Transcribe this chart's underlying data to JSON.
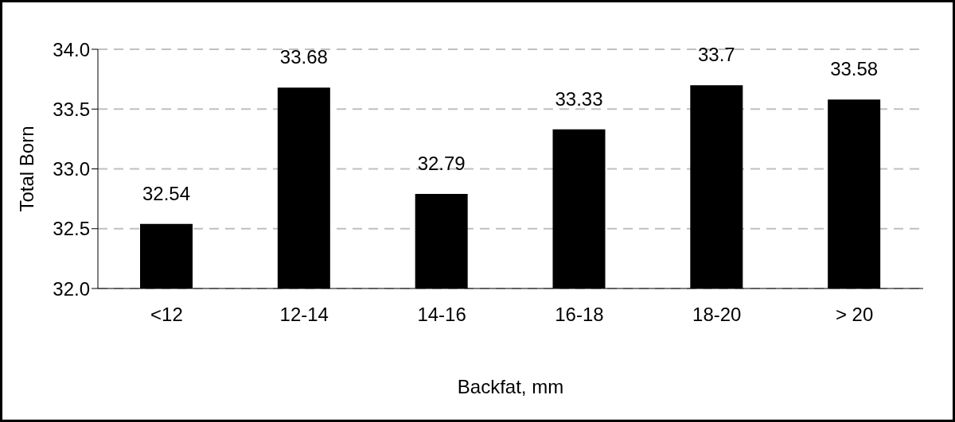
{
  "chart_data": {
    "type": "bar",
    "xlabel": "Backfat, mm",
    "ylabel": "Total Born",
    "categories": [
      "<12",
      "12-14",
      "14-16",
      "16-18",
      "18-20",
      "> 20"
    ],
    "values": [
      32.54,
      33.68,
      32.79,
      33.33,
      33.7,
      33.58
    ],
    "color": "#000000",
    "ylim": [
      32,
      34
    ],
    "yticks": [
      {
        "value": 32,
        "label": "32.0"
      },
      {
        "value": 32.5,
        "label": "32.5"
      },
      {
        "value": 33,
        "label": "33.0"
      },
      {
        "value": 33.5,
        "label": "33.5"
      },
      {
        "value": 34,
        "label": "34.0"
      }
    ],
    "grid": "y",
    "data_labels": true
  }
}
